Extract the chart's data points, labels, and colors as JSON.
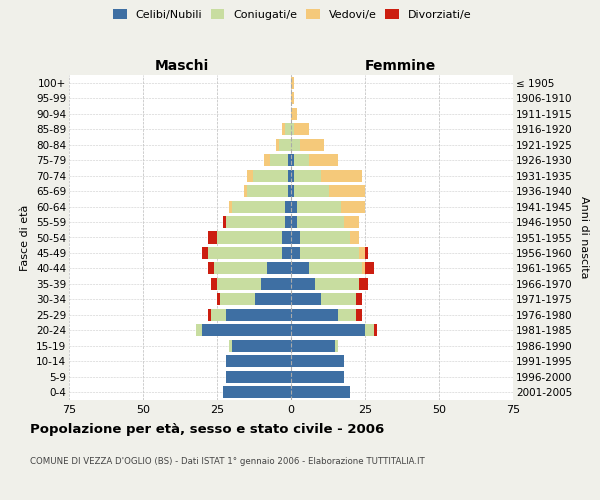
{
  "age_groups": [
    "0-4",
    "5-9",
    "10-14",
    "15-19",
    "20-24",
    "25-29",
    "30-34",
    "35-39",
    "40-44",
    "45-49",
    "50-54",
    "55-59",
    "60-64",
    "65-69",
    "70-74",
    "75-79",
    "80-84",
    "85-89",
    "90-94",
    "95-99",
    "100+"
  ],
  "birth_years": [
    "2001-2005",
    "1996-2000",
    "1991-1995",
    "1986-1990",
    "1981-1985",
    "1976-1980",
    "1971-1975",
    "1966-1970",
    "1961-1965",
    "1956-1960",
    "1951-1955",
    "1946-1950",
    "1941-1945",
    "1936-1940",
    "1931-1935",
    "1926-1930",
    "1921-1925",
    "1916-1920",
    "1911-1915",
    "1906-1910",
    "≤ 1905"
  ],
  "male": {
    "celibi": [
      23,
      22,
      22,
      20,
      30,
      22,
      12,
      10,
      8,
      3,
      3,
      2,
      2,
      1,
      1,
      1,
      0,
      0,
      0,
      0,
      0
    ],
    "coniugati": [
      0,
      0,
      0,
      1,
      2,
      5,
      12,
      15,
      18,
      25,
      22,
      20,
      18,
      14,
      12,
      6,
      4,
      2,
      0,
      0,
      0
    ],
    "vedovi": [
      0,
      0,
      0,
      0,
      0,
      0,
      0,
      0,
      0,
      0,
      0,
      0,
      1,
      1,
      2,
      2,
      1,
      1,
      0,
      0,
      0
    ],
    "divorziati": [
      0,
      0,
      0,
      0,
      0,
      1,
      1,
      2,
      2,
      2,
      3,
      1,
      0,
      0,
      0,
      0,
      0,
      0,
      0,
      0,
      0
    ]
  },
  "female": {
    "nubili": [
      20,
      18,
      18,
      15,
      25,
      16,
      10,
      8,
      6,
      3,
      3,
      2,
      2,
      1,
      1,
      1,
      0,
      0,
      0,
      0,
      0
    ],
    "coniugate": [
      0,
      0,
      0,
      1,
      3,
      6,
      12,
      15,
      18,
      20,
      17,
      16,
      15,
      12,
      9,
      5,
      3,
      1,
      0,
      0,
      0
    ],
    "vedove": [
      0,
      0,
      0,
      0,
      0,
      0,
      0,
      0,
      1,
      2,
      3,
      5,
      8,
      12,
      14,
      10,
      8,
      5,
      2,
      1,
      1
    ],
    "divorziate": [
      0,
      0,
      0,
      0,
      1,
      2,
      2,
      3,
      3,
      1,
      0,
      0,
      0,
      0,
      0,
      0,
      0,
      0,
      0,
      0,
      0
    ]
  },
  "colors": {
    "celibi": "#3e6fa3",
    "coniugati": "#c8dda0",
    "vedovi": "#f5c97a",
    "divorziati": "#cc1e10"
  },
  "title": "Popolazione per età, sesso e stato civile - 2006",
  "subtitle": "COMUNE DI VEZZA D'OGLIO (BS) - Dati ISTAT 1° gennaio 2006 - Elaborazione TUTTITALIA.IT",
  "xlim": 75,
  "xlabel_left": "Maschi",
  "xlabel_right": "Femmine",
  "ylabel_left": "Fasce di età",
  "ylabel_right": "Anni di nascita",
  "background_color": "#f0f0ea",
  "plot_background": "#ffffff"
}
